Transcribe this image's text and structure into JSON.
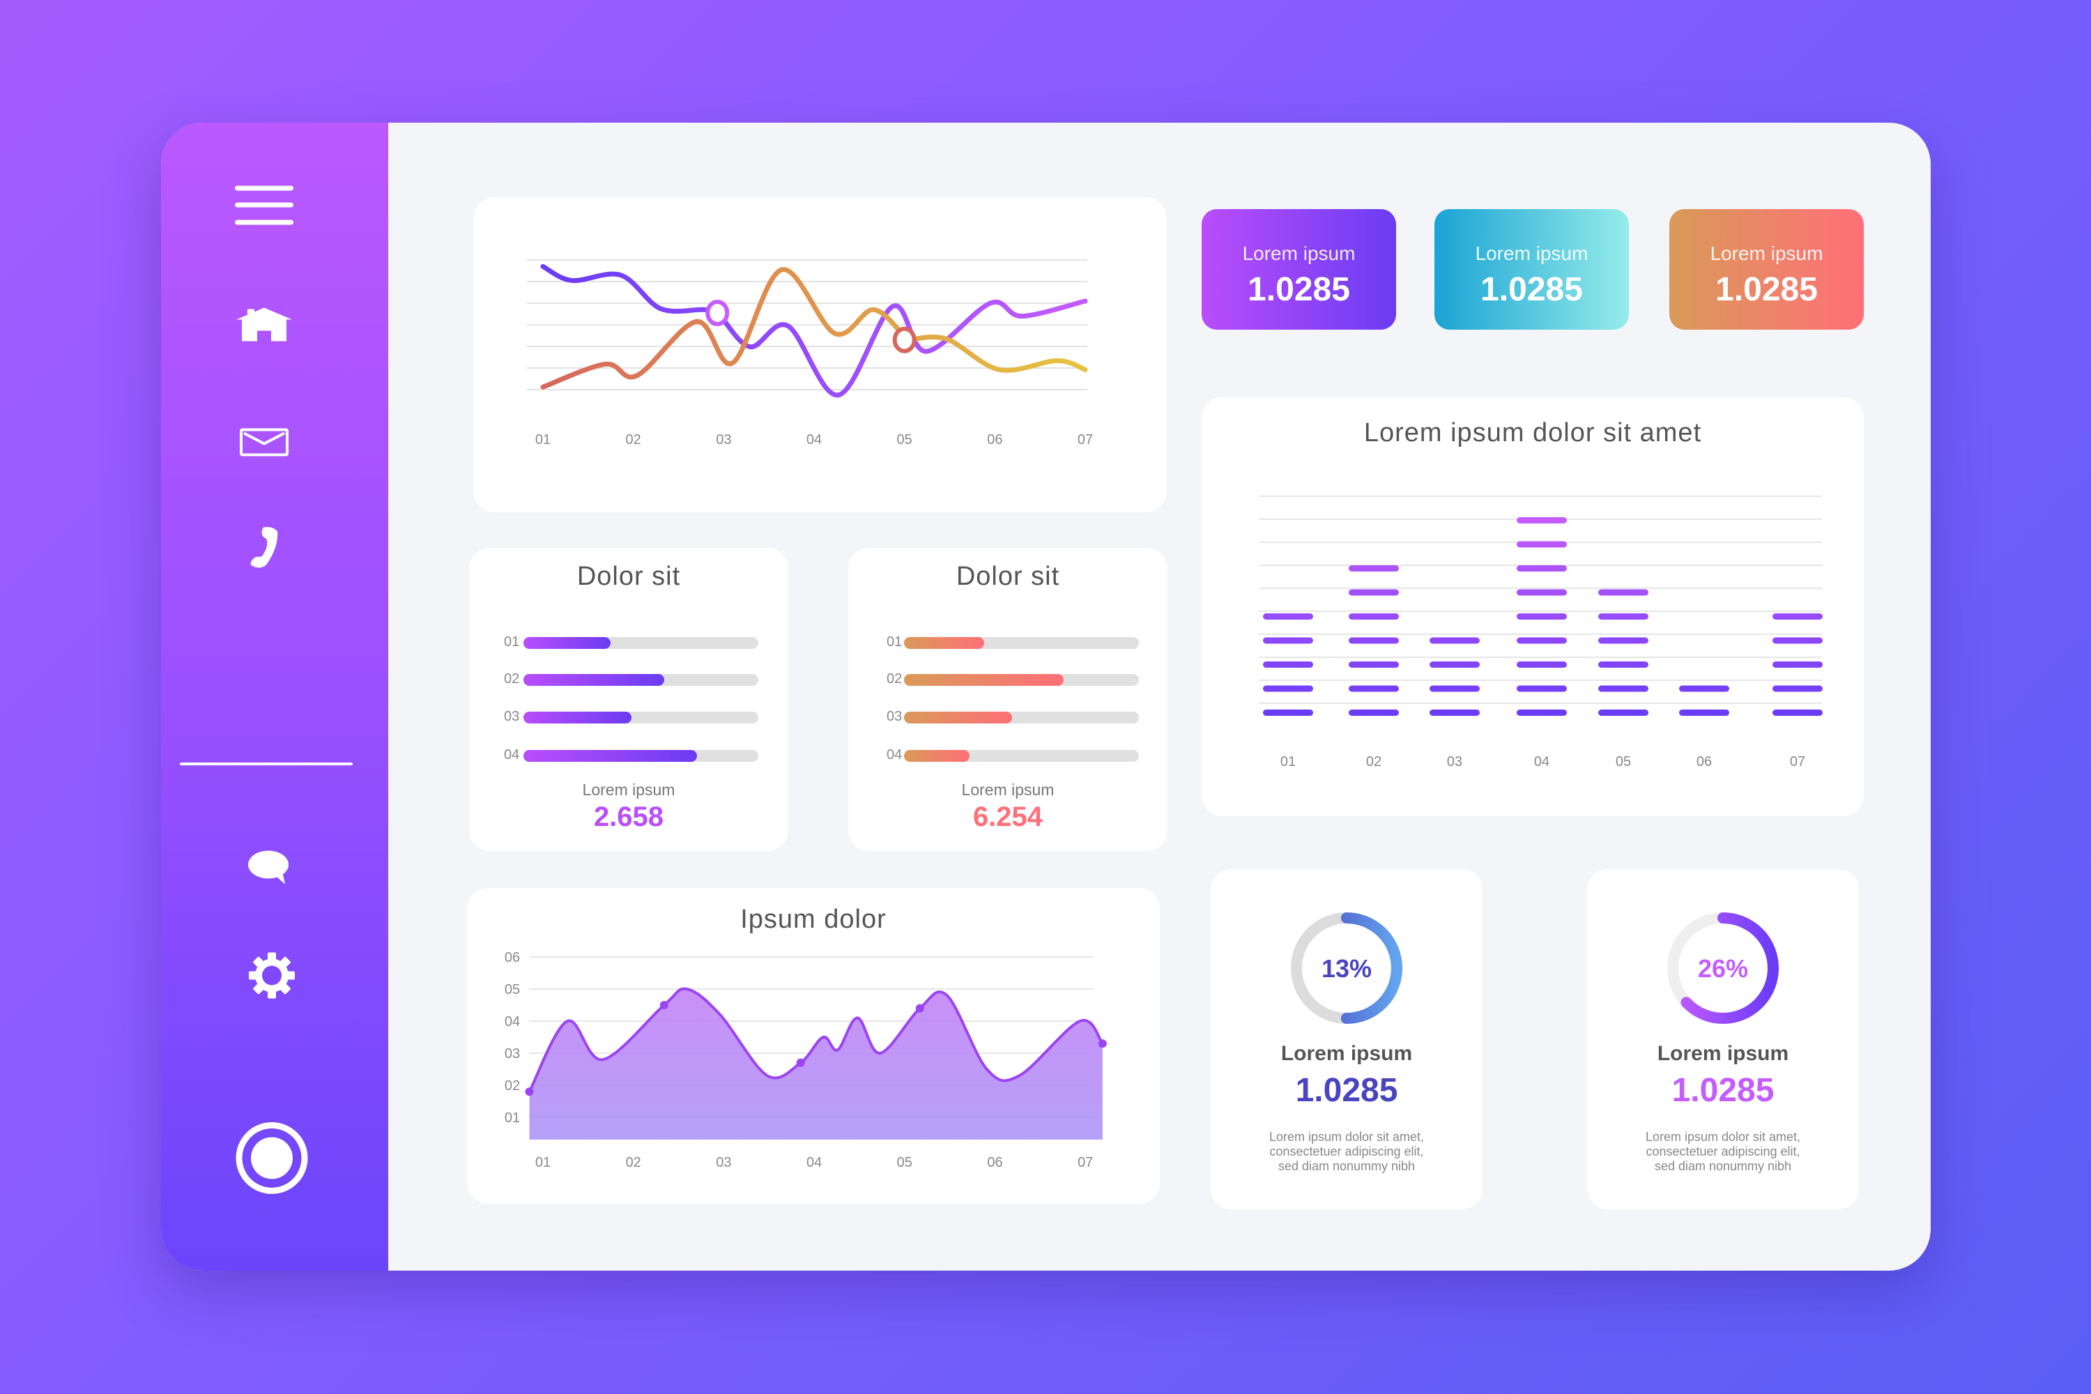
{
  "sidebar": {
    "icons": [
      "menu-icon",
      "home-icon",
      "mail-icon",
      "phone-icon",
      "chat-icon",
      "gear-icon",
      "record-icon"
    ]
  },
  "stats": [
    {
      "label": "Lorem ipsum",
      "value": "1.0285",
      "colors": [
        "#b94dfb",
        "#6b3cf2"
      ]
    },
    {
      "label": "Lorem ipsum",
      "value": "1.0285",
      "colors": [
        "#1aa3d4",
        "#95ecea"
      ]
    },
    {
      "label": "Lorem ipsum",
      "value": "1.0285",
      "colors": [
        "#d99a58",
        "#ff6f78"
      ]
    }
  ],
  "chart_data": [
    {
      "type": "line",
      "x_ticks": [
        "01",
        "02",
        "03",
        "04",
        "05",
        "06",
        "07"
      ],
      "grid": true,
      "series": [
        {
          "color": [
            "#6a3cf7",
            "#c45cff"
          ],
          "points": [
            [
              1,
              5.7
            ],
            [
              1.32,
              5.05
            ],
            [
              1.86,
              5.3
            ],
            [
              2.3,
              3.75
            ],
            [
              2.77,
              3.7
            ],
            [
              2.93,
              3.55
            ],
            [
              3.29,
              1.98
            ],
            [
              3.71,
              2.95
            ],
            [
              4.27,
              -0.25
            ],
            [
              4.87,
              3.85
            ],
            [
              5.24,
              1.77
            ],
            [
              5.95,
              4.0
            ],
            [
              6.3,
              3.4
            ],
            [
              7,
              4.1
            ]
          ],
          "marker": [
            2.93,
            3.55
          ]
        },
        {
          "color": [
            "#d8665c",
            "#e6c43f"
          ],
          "points": [
            [
              1,
              0.12
            ],
            [
              1.69,
              1.18
            ],
            [
              2.04,
              0.65
            ],
            [
              2.7,
              3.15
            ],
            [
              3.1,
              1.24
            ],
            [
              3.64,
              5.55
            ],
            [
              4.23,
              2.6
            ],
            [
              4.65,
              3.7
            ],
            [
              4.97,
              2.6
            ],
            [
              5.0,
              2.3
            ],
            [
              5.46,
              2.35
            ],
            [
              6.05,
              0.92
            ],
            [
              6.69,
              1.34
            ],
            [
              7,
              0.92
            ]
          ],
          "marker": [
            5.0,
            2.3
          ]
        }
      ]
    },
    {
      "type": "bar",
      "title": "Lorem ipsum dolor sit amet",
      "categories": [
        "01",
        "02",
        "03",
        "04",
        "05",
        "06",
        "07"
      ],
      "values": [
        5,
        7,
        4,
        9,
        6,
        2,
        5
      ],
      "grid": true
    },
    {
      "type": "area",
      "title": "Ipsum dolor",
      "x_ticks": [
        "01",
        "02",
        "03",
        "04",
        "05",
        "06",
        "07"
      ],
      "y_ticks": [
        "01",
        "02",
        "03",
        "04",
        "05",
        "06"
      ],
      "points": [
        [
          0.85,
          1.8
        ],
        [
          1.27,
          4.0
        ],
        [
          1.66,
          2.8
        ],
        [
          2.34,
          4.5
        ],
        [
          2.59,
          5.0
        ],
        [
          2.96,
          4.2
        ],
        [
          3.48,
          2.3
        ],
        [
          3.85,
          2.7
        ],
        [
          4.1,
          3.5
        ],
        [
          4.26,
          3.1
        ],
        [
          4.48,
          4.1
        ],
        [
          4.73,
          3.0
        ],
        [
          5.17,
          4.4
        ],
        [
          5.47,
          4.8
        ],
        [
          5.91,
          2.5
        ],
        [
          6.27,
          2.3
        ],
        [
          6.94,
          4.0
        ],
        [
          7.19,
          3.3
        ]
      ]
    }
  ],
  "progress_cards": [
    {
      "title": "Dolor sit",
      "rows": [
        {
          "label": "01",
          "value": 0.37
        },
        {
          "label": "02",
          "value": 0.6
        },
        {
          "label": "03",
          "value": 0.46
        },
        {
          "label": "04",
          "value": 0.74
        }
      ],
      "caption": "Lorem ipsum",
      "value": "2.658",
      "colors": [
        "#b94dfb",
        "#6b3cf2"
      ]
    },
    {
      "title": "Dolor sit",
      "rows": [
        {
          "label": "01",
          "value": 0.34
        },
        {
          "label": "02",
          "value": 0.68
        },
        {
          "label": "03",
          "value": 0.46
        },
        {
          "label": "04",
          "value": 0.28
        }
      ],
      "caption": "Lorem ipsum",
      "value": "6.254",
      "colors": [
        "#d99a58",
        "#ff6f78"
      ]
    }
  ],
  "donuts": [
    {
      "percent": "13%",
      "label": "Lorem ipsum",
      "value": "1.0285",
      "desc": [
        "Lorem ipsum dolor sit amet,",
        "consectetuer adipiscing elit,",
        "sed diam nonummy nibh"
      ],
      "colors": [
        "#4a44c0",
        "#62a4ee"
      ]
    },
    {
      "percent": "26%",
      "label": "Lorem ipsum",
      "value": "1.0285",
      "desc": [
        "Lorem ipsum dolor sit amet,",
        "consectetuer adipiscing elit,",
        "sed diam nonummy nibh"
      ],
      "colors": [
        "#c45cff",
        "#6a3cf7"
      ]
    }
  ]
}
